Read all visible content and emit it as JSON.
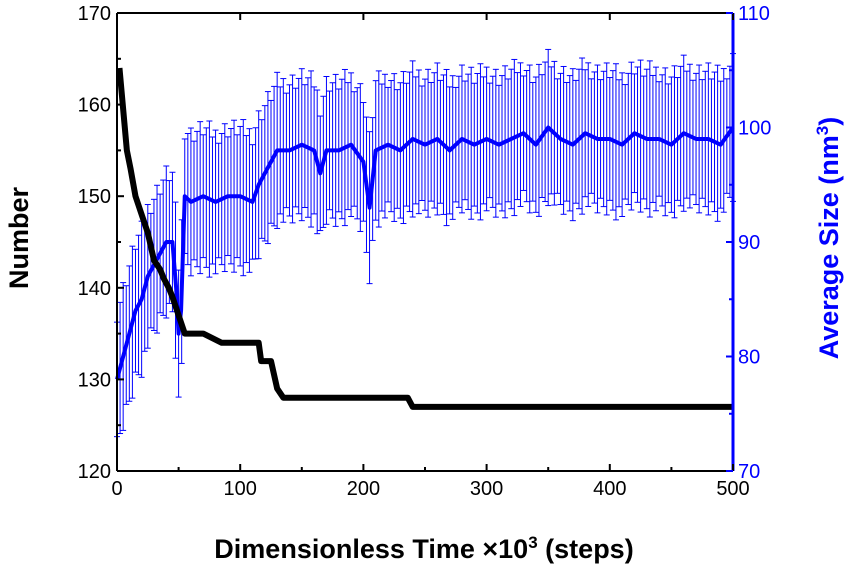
{
  "chart_data": {
    "type": "line",
    "title": "",
    "xlabel_main": "Dimensionless Time ×10",
    "xlabel_sup": "3",
    "xlabel_tail": " (steps)",
    "ylabel_left": "Number",
    "ylabel_right_main": "Average Size (nm",
    "ylabel_right_sup": "3",
    "ylabel_right_tail": ")",
    "xlim": [
      0,
      500
    ],
    "ylim_left": [
      120,
      170
    ],
    "ylim_right": [
      70,
      110
    ],
    "x_ticks": [
      "0",
      "100",
      "200",
      "300",
      "400",
      "500"
    ],
    "y_left_ticks": [
      "120",
      "130",
      "140",
      "150",
      "160",
      "170"
    ],
    "y_right_ticks": [
      "70",
      "80",
      "90",
      "100",
      "110"
    ],
    "grid": false,
    "colors": {
      "number_series": "#000000",
      "size_series": "#0000ff",
      "axis_left": "#000000",
      "axis_right": "#0000ff"
    },
    "series": [
      {
        "axis": "left",
        "color": "#000000",
        "x": [
          2,
          4,
          6,
          8,
          11,
          15,
          20,
          25,
          30,
          35,
          38,
          42,
          45,
          50,
          55,
          70,
          85,
          100,
          115,
          117,
          125,
          130,
          135,
          180,
          236,
          240,
          300,
          400,
          500
        ],
        "y": [
          164,
          161,
          158,
          155,
          153,
          150,
          148,
          146,
          143,
          142,
          141,
          140,
          139,
          137,
          135,
          135,
          134,
          134,
          134,
          132,
          132,
          129,
          128,
          128,
          128,
          127,
          127,
          127,
          127
        ]
      },
      {
        "axis": "right",
        "color": "#0000ff",
        "x": [
          0,
          5,
          10,
          15,
          20,
          25,
          30,
          35,
          40,
          45,
          48,
          50,
          52,
          55,
          60,
          70,
          80,
          90,
          100,
          110,
          115,
          120,
          125,
          130,
          140,
          150,
          160,
          165,
          170,
          180,
          190,
          200,
          205,
          210,
          220,
          230,
          240,
          250,
          260,
          270,
          280,
          290,
          300,
          310,
          320,
          330,
          340,
          350,
          360,
          370,
          380,
          390,
          400,
          410,
          420,
          430,
          440,
          450,
          460,
          470,
          480,
          490,
          500
        ],
        "y": [
          78,
          80,
          82,
          84,
          85,
          87,
          88,
          89,
          90,
          90,
          86,
          82,
          84,
          94,
          93.5,
          94,
          93.5,
          94,
          94,
          93.5,
          95,
          96,
          97,
          98,
          98,
          98.5,
          98,
          96,
          98,
          98,
          98.5,
          97,
          93,
          98,
          98.5,
          98,
          99,
          98.5,
          99,
          98,
          99,
          98.5,
          99,
          98.5,
          99,
          99.5,
          98.5,
          100,
          99,
          98.5,
          99.5,
          99,
          99,
          98.5,
          99.5,
          99,
          99,
          98.5,
          99.5,
          99,
          99,
          98.5,
          100
        ],
        "error": 6
      }
    ]
  }
}
